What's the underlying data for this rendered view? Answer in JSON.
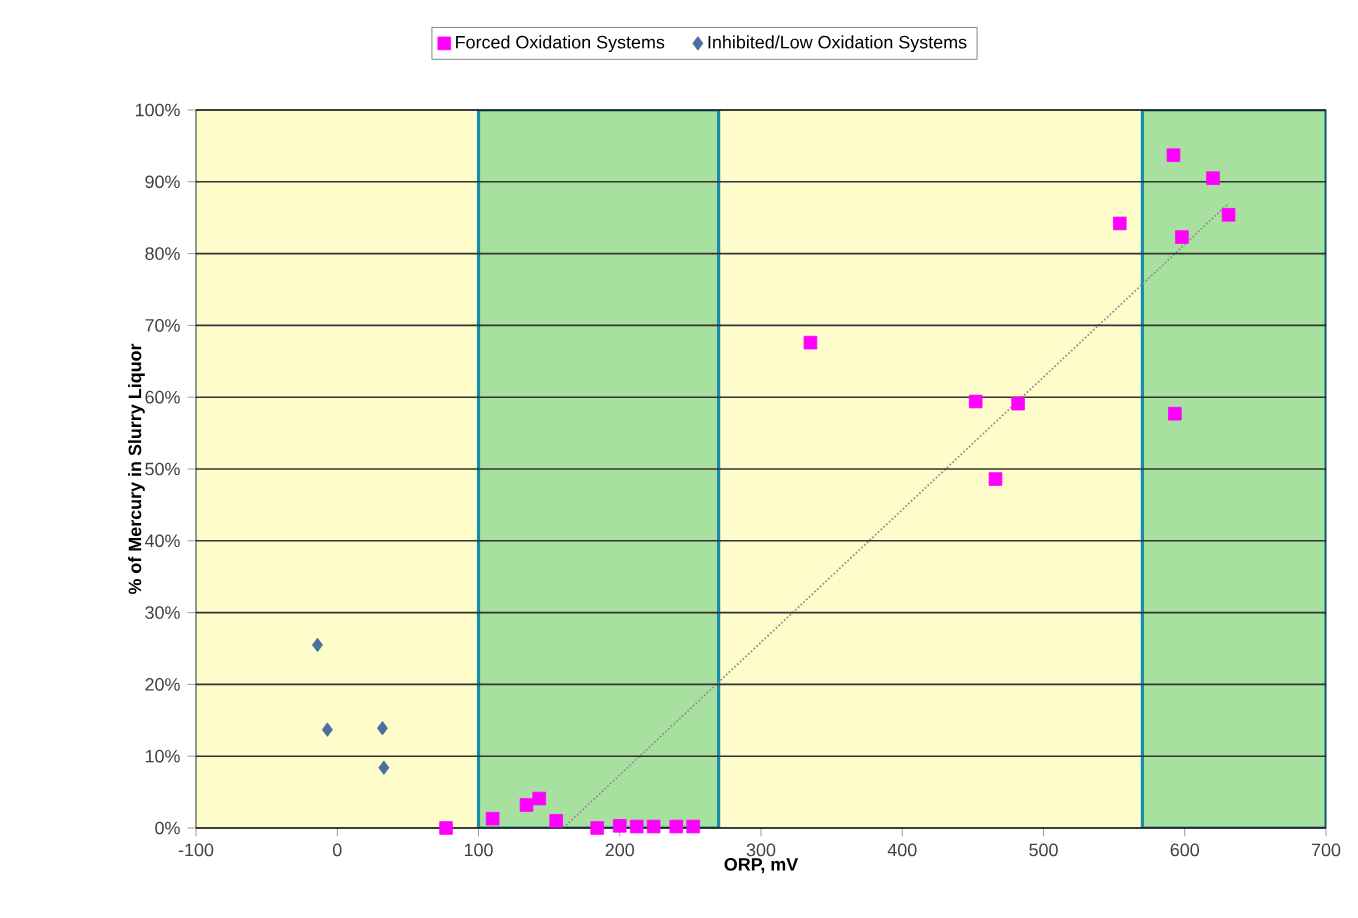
{
  "chart_data": {
    "type": "scatter",
    "xlabel": "ORP, mV",
    "ylabel": "% of Mercury in Slurry Liquor",
    "xlim": [
      -100,
      700
    ],
    "xticks": [
      -100,
      0,
      100,
      200,
      300,
      400,
      500,
      600,
      700
    ],
    "ylim": [
      0,
      100
    ],
    "yticks": [
      {
        "value": 0,
        "label": "0%"
      },
      {
        "value": 10,
        "label": "10%"
      },
      {
        "value": 20,
        "label": "20%"
      },
      {
        "value": 30,
        "label": "30%"
      },
      {
        "value": 40,
        "label": "40%"
      },
      {
        "value": 50,
        "label": "50%"
      },
      {
        "value": 60,
        "label": "60%"
      },
      {
        "value": 70,
        "label": "70%"
      },
      {
        "value": 80,
        "label": "80%"
      },
      {
        "value": 90,
        "label": "90%"
      },
      {
        "value": 100,
        "label": "100%"
      }
    ],
    "grid": "y",
    "legend": "top",
    "bands": [
      {
        "axis": "x",
        "from": 100,
        "to": 270,
        "color": "#a8e0a0"
      },
      {
        "axis": "x",
        "from": 570,
        "to": 700,
        "color": "#a8e0a0"
      }
    ],
    "series": [
      {
        "name": "Forced Oxidation Systems",
        "color": "#ff00ff",
        "marker": "square",
        "x": [
          77,
          110,
          134,
          143,
          155,
          184,
          200,
          212,
          224,
          240,
          252,
          335,
          452,
          482,
          466,
          554,
          592,
          620,
          631,
          598,
          593
        ],
        "values": [
          0,
          1.3,
          3.2,
          4.1,
          1,
          0,
          0.3,
          0.2,
          0.2,
          0.2,
          0.2,
          67.6,
          59.4,
          59.1,
          48.6,
          84.2,
          93.7,
          90.5,
          85.4,
          82.3,
          57.7
        ]
      },
      {
        "name": "Inhibited/Low Oxidation Systems",
        "color": "#4a6fa0",
        "marker": "diamond",
        "x": [
          -14,
          -7,
          32,
          33
        ],
        "values": [
          25.5,
          13.7,
          13.9,
          8.4
        ]
      },
      {
        "type": "line",
        "color": "#909090",
        "marker": "none",
        "line_style": "dotted",
        "x": [
          160,
          631
        ],
        "values": [
          0,
          87
        ]
      }
    ]
  }
}
